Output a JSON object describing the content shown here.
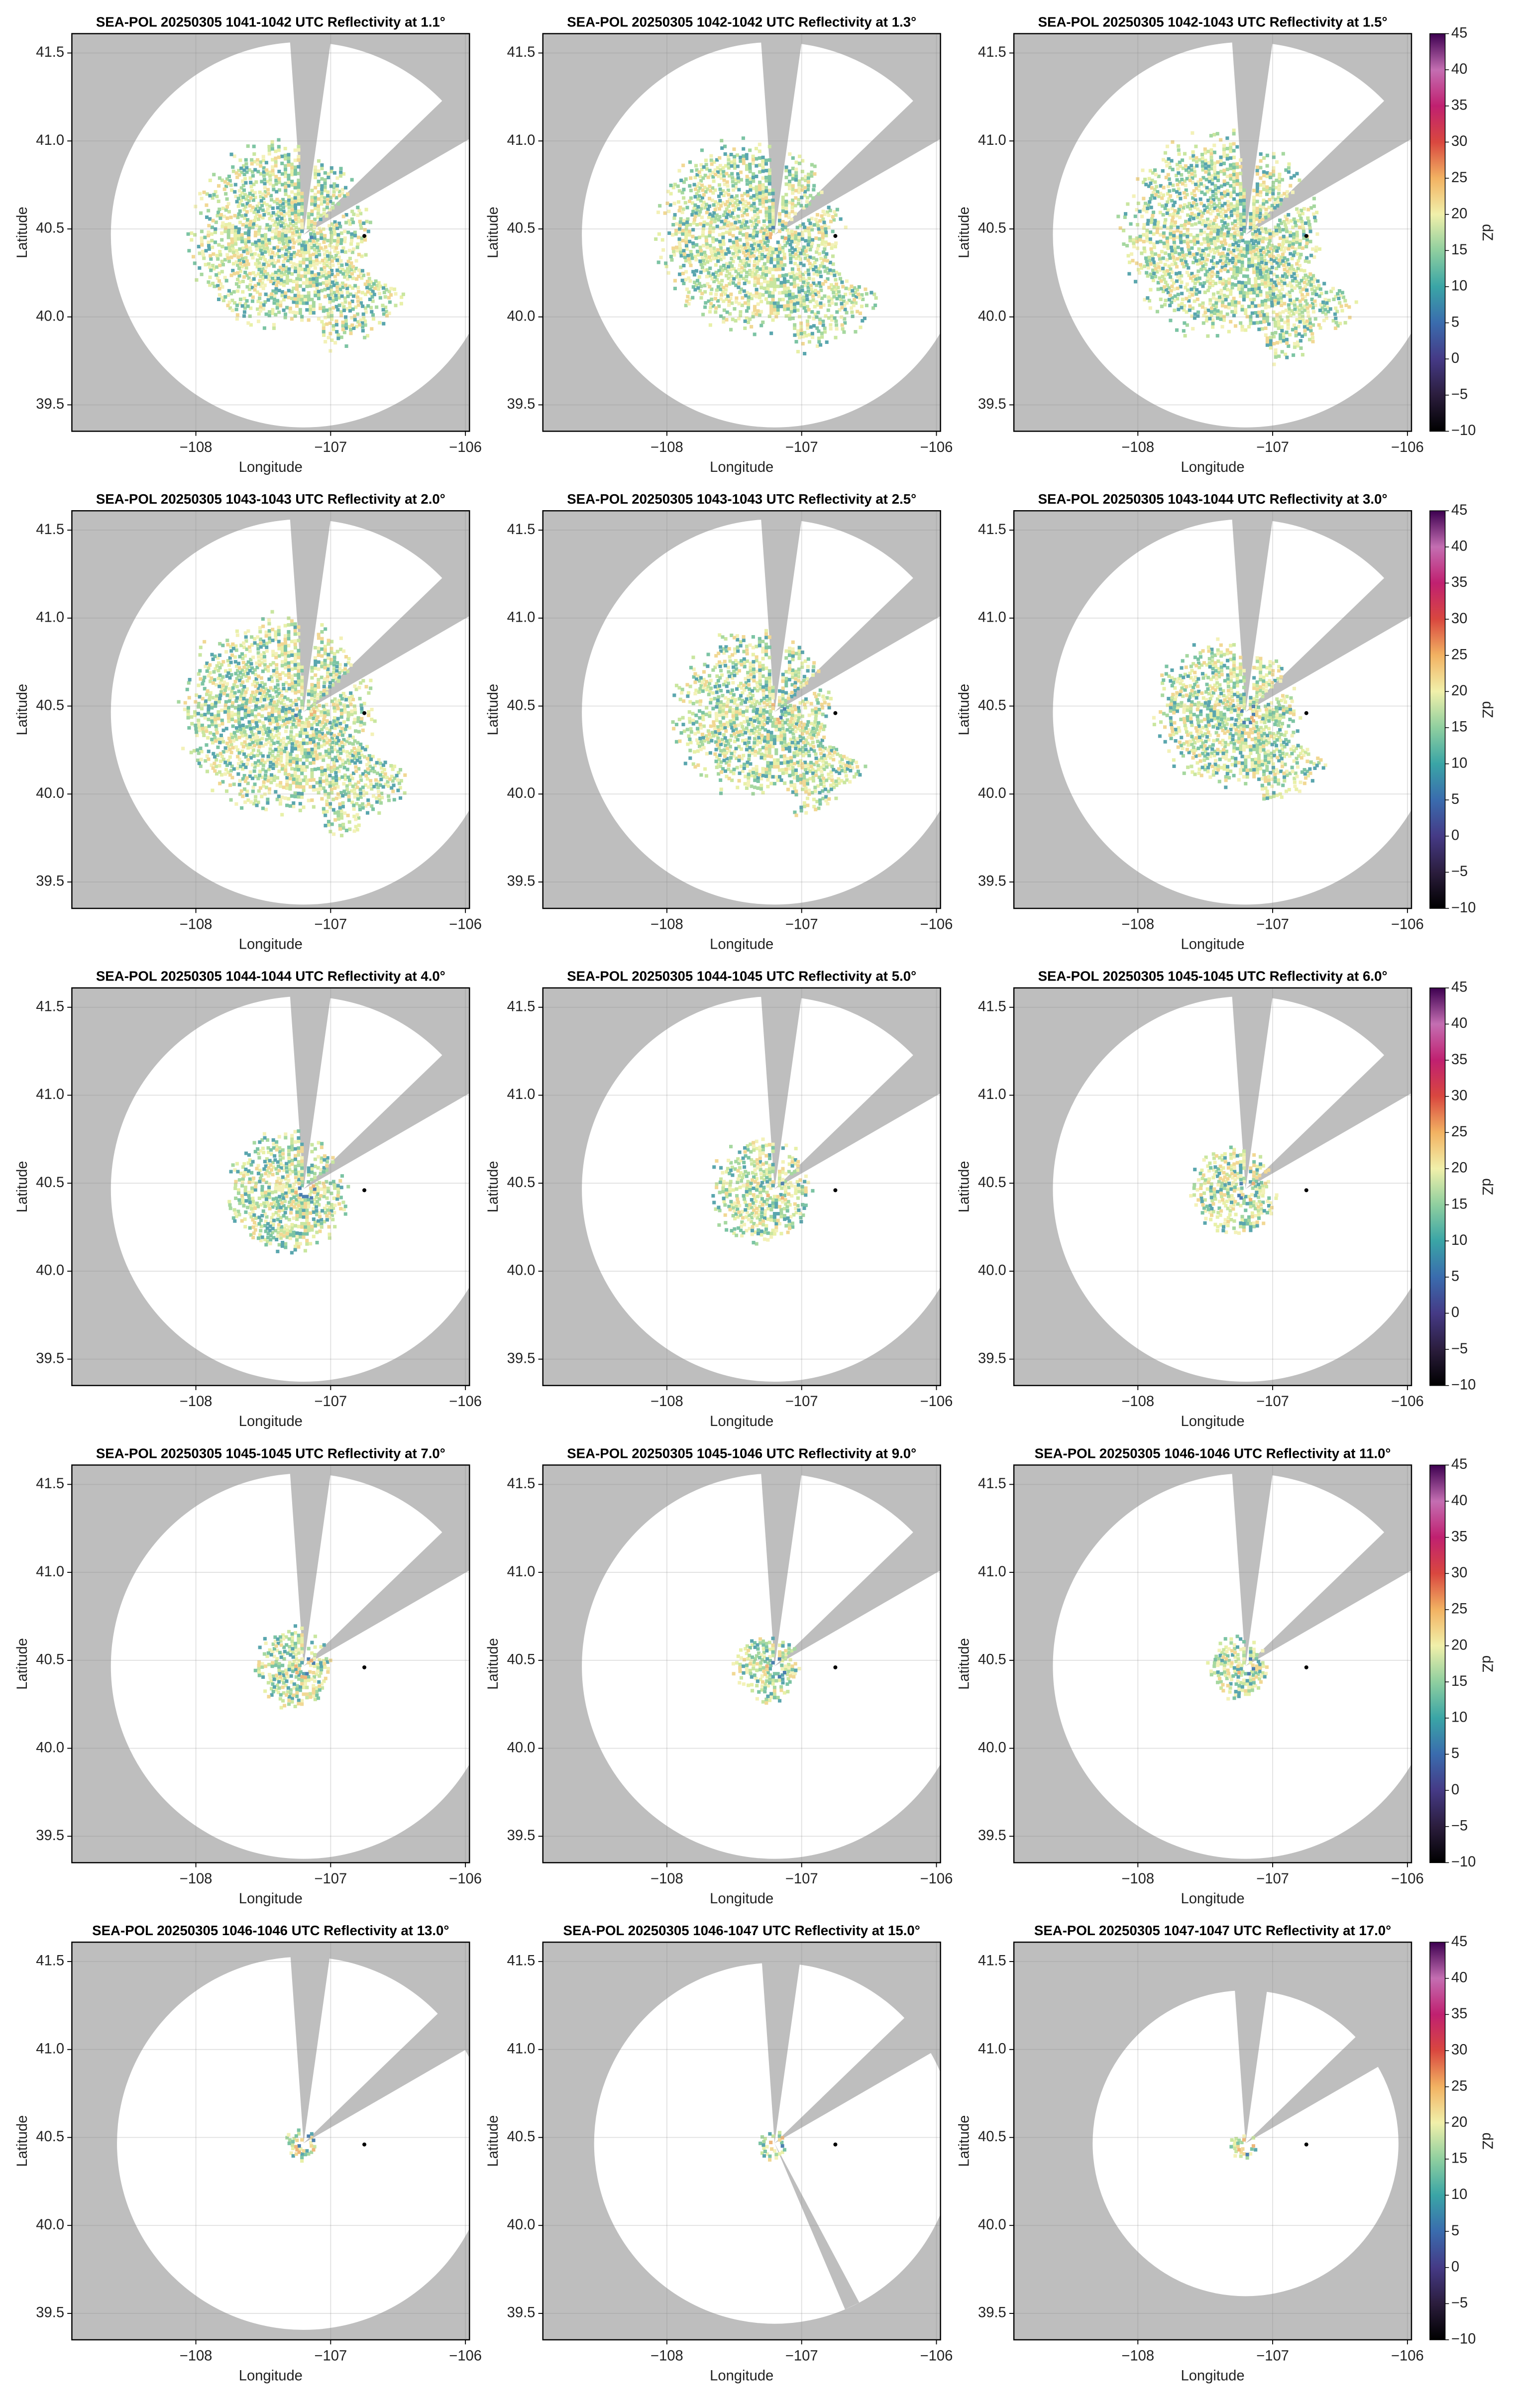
{
  "chart_data": [
    {
      "type": "ppi",
      "title": "SEA-POL 20250305 1041-1042 UTC Reflectivity at 1.1°",
      "x_label": "Longitude",
      "y_label": "Latitude",
      "xlim": [
        -108.92,
        -105.97
      ],
      "ylim": [
        39.35,
        41.61
      ],
      "xticks": [
        {
          "value": -108,
          "label": "−108"
        },
        {
          "value": -107,
          "label": "−107"
        },
        {
          "value": -106,
          "label": "−106"
        }
      ],
      "yticks": [
        39.5,
        {
          "value": 40,
          "label": "40.0"
        },
        40.5,
        {
          "value": 41,
          "label": "41.0"
        },
        41.5
      ],
      "grid": true,
      "points": {
        "x": [
          -106.75
        ],
        "y": [
          40.46
        ],
        "color": "#000000"
      }
    },
    {
      "type": "ppi",
      "title": "SEA-POL 20250305 1042-1042 UTC Reflectivity at 1.3°",
      "x_label": "Longitude",
      "y_label": "Latitude",
      "xlim": [
        -108.92,
        -105.97
      ],
      "ylim": [
        39.35,
        41.61
      ],
      "xticks": [
        {
          "value": -108,
          "label": "−108"
        },
        {
          "value": -107,
          "label": "−107"
        },
        {
          "value": -106,
          "label": "−106"
        }
      ],
      "yticks": [
        39.5,
        {
          "value": 40,
          "label": "40.0"
        },
        40.5,
        {
          "value": 41,
          "label": "41.0"
        },
        41.5
      ],
      "grid": true,
      "points": {
        "x": [
          -106.75
        ],
        "y": [
          40.46
        ],
        "color": "#000000"
      }
    },
    {
      "type": "ppi",
      "title": "SEA-POL 20250305 1042-1043 UTC Reflectivity at 1.5°",
      "x_label": "Longitude",
      "y_label": "Latitude",
      "xlim": [
        -108.92,
        -105.97
      ],
      "ylim": [
        39.35,
        41.61
      ],
      "xticks": [
        {
          "value": -108,
          "label": "−108"
        },
        {
          "value": -107,
          "label": "−107"
        },
        {
          "value": -106,
          "label": "−106"
        }
      ],
      "yticks": [
        39.5,
        {
          "value": 40,
          "label": "40.0"
        },
        40.5,
        {
          "value": 41,
          "label": "41.0"
        },
        41.5
      ],
      "grid": true,
      "points": {
        "x": [
          -106.75
        ],
        "y": [
          40.46
        ],
        "color": "#000000"
      },
      "colorbar": {
        "label": "dZ",
        "lim": [
          -10,
          45
        ],
        "ticks": [
          {
            "value": -10,
            "label": "−10"
          },
          {
            "value": -5,
            "label": "−5"
          },
          0,
          5,
          10,
          15,
          20,
          25,
          30,
          35,
          40,
          45
        ],
        "colors": [
          "#000000",
          "#2b1d3d",
          "#453a86",
          "#3a6cae",
          "#3aa5a6",
          "#8fcf9f",
          "#f1f0aa",
          "#f2b262",
          "#d9473f",
          "#c02070",
          "#c46eb2",
          "#3d0050"
        ]
      }
    },
    {
      "type": "ppi",
      "title": "SEA-POL 20250305 1043-1043 UTC Reflectivity at 2.0°",
      "x_label": "Longitude",
      "y_label": "Latitude",
      "xlim": [
        -108.92,
        -105.97
      ],
      "ylim": [
        39.35,
        41.61
      ],
      "xticks": [
        {
          "value": -108,
          "label": "−108"
        },
        {
          "value": -107,
          "label": "−107"
        },
        {
          "value": -106,
          "label": "−106"
        }
      ],
      "yticks": [
        39.5,
        {
          "value": 40,
          "label": "40.0"
        },
        40.5,
        {
          "value": 41,
          "label": "41.0"
        },
        41.5
      ],
      "grid": true,
      "points": {
        "x": [
          -106.75
        ],
        "y": [
          40.46
        ],
        "color": "#000000"
      }
    },
    {
      "type": "ppi",
      "title": "SEA-POL 20250305 1043-1043 UTC Reflectivity at 2.5°",
      "x_label": "Longitude",
      "y_label": "Latitude",
      "xlim": [
        -108.92,
        -105.97
      ],
      "ylim": [
        39.35,
        41.61
      ],
      "xticks": [
        {
          "value": -108,
          "label": "−108"
        },
        {
          "value": -107,
          "label": "−107"
        },
        {
          "value": -106,
          "label": "−106"
        }
      ],
      "yticks": [
        39.5,
        {
          "value": 40,
          "label": "40.0"
        },
        40.5,
        {
          "value": 41,
          "label": "41.0"
        },
        41.5
      ],
      "grid": true,
      "points": {
        "x": [
          -106.75
        ],
        "y": [
          40.46
        ],
        "color": "#000000"
      }
    },
    {
      "type": "ppi",
      "title": "SEA-POL 20250305 1043-1044 UTC Reflectivity at 3.0°",
      "x_label": "Longitude",
      "y_label": "Latitude",
      "xlim": [
        -108.92,
        -105.97
      ],
      "ylim": [
        39.35,
        41.61
      ],
      "xticks": [
        {
          "value": -108,
          "label": "−108"
        },
        {
          "value": -107,
          "label": "−107"
        },
        {
          "value": -106,
          "label": "−106"
        }
      ],
      "yticks": [
        39.5,
        {
          "value": 40,
          "label": "40.0"
        },
        40.5,
        {
          "value": 41,
          "label": "41.0"
        },
        41.5
      ],
      "grid": true,
      "points": {
        "x": [
          -106.75
        ],
        "y": [
          40.46
        ],
        "color": "#000000"
      },
      "colorbar": {
        "label": "dZ",
        "lim": [
          -10,
          45
        ],
        "ticks": [
          {
            "value": -10,
            "label": "−10"
          },
          {
            "value": -5,
            "label": "−5"
          },
          0,
          5,
          10,
          15,
          20,
          25,
          30,
          35,
          40,
          45
        ],
        "colors": [
          "#000000",
          "#2b1d3d",
          "#453a86",
          "#3a6cae",
          "#3aa5a6",
          "#8fcf9f",
          "#f1f0aa",
          "#f2b262",
          "#d9473f",
          "#c02070",
          "#c46eb2",
          "#3d0050"
        ]
      }
    },
    {
      "type": "ppi",
      "title": "SEA-POL 20250305 1044-1044 UTC Reflectivity at 4.0°",
      "x_label": "Longitude",
      "y_label": "Latitude",
      "xlim": [
        -108.92,
        -105.97
      ],
      "ylim": [
        39.35,
        41.61
      ],
      "xticks": [
        {
          "value": -108,
          "label": "−108"
        },
        {
          "value": -107,
          "label": "−107"
        },
        {
          "value": -106,
          "label": "−106"
        }
      ],
      "yticks": [
        39.5,
        {
          "value": 40,
          "label": "40.0"
        },
        40.5,
        {
          "value": 41,
          "label": "41.0"
        },
        41.5
      ],
      "grid": true,
      "points": {
        "x": [
          -106.75
        ],
        "y": [
          40.46
        ],
        "color": "#000000"
      }
    },
    {
      "type": "ppi",
      "title": "SEA-POL 20250305 1044-1045 UTC Reflectivity at 5.0°",
      "x_label": "Longitude",
      "y_label": "Latitude",
      "xlim": [
        -108.92,
        -105.97
      ],
      "ylim": [
        39.35,
        41.61
      ],
      "xticks": [
        {
          "value": -108,
          "label": "−108"
        },
        {
          "value": -107,
          "label": "−107"
        },
        {
          "value": -106,
          "label": "−106"
        }
      ],
      "yticks": [
        39.5,
        {
          "value": 40,
          "label": "40.0"
        },
        40.5,
        {
          "value": 41,
          "label": "41.0"
        },
        41.5
      ],
      "grid": true,
      "points": {
        "x": [
          -106.75
        ],
        "y": [
          40.46
        ],
        "color": "#000000"
      }
    },
    {
      "type": "ppi",
      "title": "SEA-POL 20250305 1045-1045 UTC Reflectivity at 6.0°",
      "x_label": "Longitude",
      "y_label": "Latitude",
      "xlim": [
        -108.92,
        -105.97
      ],
      "ylim": [
        39.35,
        41.61
      ],
      "xticks": [
        {
          "value": -108,
          "label": "−108"
        },
        {
          "value": -107,
          "label": "−107"
        },
        {
          "value": -106,
          "label": "−106"
        }
      ],
      "yticks": [
        39.5,
        {
          "value": 40,
          "label": "40.0"
        },
        40.5,
        {
          "value": 41,
          "label": "41.0"
        },
        41.5
      ],
      "grid": true,
      "points": {
        "x": [
          -106.75
        ],
        "y": [
          40.46
        ],
        "color": "#000000"
      },
      "colorbar": {
        "label": "dZ",
        "lim": [
          -10,
          45
        ],
        "ticks": [
          {
            "value": -10,
            "label": "−10"
          },
          {
            "value": -5,
            "label": "−5"
          },
          0,
          5,
          10,
          15,
          20,
          25,
          30,
          35,
          40,
          45
        ],
        "colors": [
          "#000000",
          "#2b1d3d",
          "#453a86",
          "#3a6cae",
          "#3aa5a6",
          "#8fcf9f",
          "#f1f0aa",
          "#f2b262",
          "#d9473f",
          "#c02070",
          "#c46eb2",
          "#3d0050"
        ]
      }
    },
    {
      "type": "ppi",
      "title": "SEA-POL 20250305 1045-1045 UTC Reflectivity at 7.0°",
      "x_label": "Longitude",
      "y_label": "Latitude",
      "xlim": [
        -108.92,
        -105.97
      ],
      "ylim": [
        39.35,
        41.61
      ],
      "xticks": [
        {
          "value": -108,
          "label": "−108"
        },
        {
          "value": -107,
          "label": "−107"
        },
        {
          "value": -106,
          "label": "−106"
        }
      ],
      "yticks": [
        39.5,
        {
          "value": 40,
          "label": "40.0"
        },
        40.5,
        {
          "value": 41,
          "label": "41.0"
        },
        41.5
      ],
      "grid": true,
      "points": {
        "x": [
          -106.75
        ],
        "y": [
          40.46
        ],
        "color": "#000000"
      }
    },
    {
      "type": "ppi",
      "title": "SEA-POL 20250305 1045-1046 UTC Reflectivity at 9.0°",
      "x_label": "Longitude",
      "y_label": "Latitude",
      "xlim": [
        -108.92,
        -105.97
      ],
      "ylim": [
        39.35,
        41.61
      ],
      "xticks": [
        {
          "value": -108,
          "label": "−108"
        },
        {
          "value": -107,
          "label": "−107"
        },
        {
          "value": -106,
          "label": "−106"
        }
      ],
      "yticks": [
        39.5,
        {
          "value": 40,
          "label": "40.0"
        },
        40.5,
        {
          "value": 41,
          "label": "41.0"
        },
        41.5
      ],
      "grid": true,
      "points": {
        "x": [
          -106.75
        ],
        "y": [
          40.46
        ],
        "color": "#000000"
      }
    },
    {
      "type": "ppi",
      "title": "SEA-POL 20250305 1046-1046 UTC Reflectivity at 11.0°",
      "x_label": "Longitude",
      "y_label": "Latitude",
      "xlim": [
        -108.92,
        -105.97
      ],
      "ylim": [
        39.35,
        41.61
      ],
      "xticks": [
        {
          "value": -108,
          "label": "−108"
        },
        {
          "value": -107,
          "label": "−107"
        },
        {
          "value": -106,
          "label": "−106"
        }
      ],
      "yticks": [
        39.5,
        {
          "value": 40,
          "label": "40.0"
        },
        40.5,
        {
          "value": 41,
          "label": "41.0"
        },
        41.5
      ],
      "grid": true,
      "points": {
        "x": [
          -106.75
        ],
        "y": [
          40.46
        ],
        "color": "#000000"
      },
      "colorbar": {
        "label": "dZ",
        "lim": [
          -10,
          45
        ],
        "ticks": [
          {
            "value": -10,
            "label": "−10"
          },
          {
            "value": -5,
            "label": "−5"
          },
          0,
          5,
          10,
          15,
          20,
          25,
          30,
          35,
          40,
          45
        ],
        "colors": [
          "#000000",
          "#2b1d3d",
          "#453a86",
          "#3a6cae",
          "#3aa5a6",
          "#8fcf9f",
          "#f1f0aa",
          "#f2b262",
          "#d9473f",
          "#c02070",
          "#c46eb2",
          "#3d0050"
        ]
      }
    },
    {
      "type": "ppi",
      "title": "SEA-POL 20250305 1046-1046 UTC Reflectivity at 13.0°",
      "x_label": "Longitude",
      "y_label": "Latitude",
      "xlim": [
        -108.92,
        -105.97
      ],
      "ylim": [
        39.35,
        41.61
      ],
      "xticks": [
        {
          "value": -108,
          "label": "−108"
        },
        {
          "value": -107,
          "label": "−107"
        },
        {
          "value": -106,
          "label": "−106"
        }
      ],
      "yticks": [
        39.5,
        {
          "value": 40,
          "label": "40.0"
        },
        40.5,
        {
          "value": 41,
          "label": "41.0"
        },
        41.5
      ],
      "grid": true,
      "points": {
        "x": [
          -106.75
        ],
        "y": [
          40.46
        ],
        "color": "#000000"
      }
    },
    {
      "type": "ppi",
      "title": "SEA-POL 20250305 1046-1047 UTC Reflectivity at 15.0°",
      "x_label": "Longitude",
      "y_label": "Latitude",
      "xlim": [
        -108.92,
        -105.97
      ],
      "ylim": [
        39.35,
        41.61
      ],
      "xticks": [
        {
          "value": -108,
          "label": "−108"
        },
        {
          "value": -107,
          "label": "−107"
        },
        {
          "value": -106,
          "label": "−106"
        }
      ],
      "yticks": [
        39.5,
        {
          "value": 40,
          "label": "40.0"
        },
        40.5,
        {
          "value": 41,
          "label": "41.0"
        },
        41.5
      ],
      "grid": true,
      "points": {
        "x": [
          -106.75
        ],
        "y": [
          40.46
        ],
        "color": "#000000"
      }
    },
    {
      "type": "ppi",
      "title": "SEA-POL 20250305 1047-1047 UTC Reflectivity at 17.0°",
      "x_label": "Longitude",
      "y_label": "Latitude",
      "xlim": [
        -108.92,
        -105.97
      ],
      "ylim": [
        39.35,
        41.61
      ],
      "xticks": [
        {
          "value": -108,
          "label": "−108"
        },
        {
          "value": -107,
          "label": "−107"
        },
        {
          "value": -106,
          "label": "−106"
        }
      ],
      "yticks": [
        39.5,
        {
          "value": 40,
          "label": "40.0"
        },
        40.5,
        {
          "value": 41,
          "label": "41.0"
        },
        41.5
      ],
      "grid": true,
      "points": {
        "x": [
          -106.75
        ],
        "y": [
          40.46
        ],
        "color": "#000000"
      },
      "colorbar": {
        "label": "dZ",
        "lim": [
          -10,
          45
        ],
        "ticks": [
          {
            "value": -10,
            "label": "−10"
          },
          {
            "value": -5,
            "label": "−5"
          },
          0,
          5,
          10,
          15,
          20,
          25,
          30,
          35,
          40,
          45
        ],
        "colors": [
          "#000000",
          "#2b1d3d",
          "#453a86",
          "#3a6cae",
          "#3aa5a6",
          "#8fcf9f",
          "#f1f0aa",
          "#f2b262",
          "#d9473f",
          "#c02070",
          "#c46eb2",
          "#3d0050"
        ]
      }
    }
  ]
}
